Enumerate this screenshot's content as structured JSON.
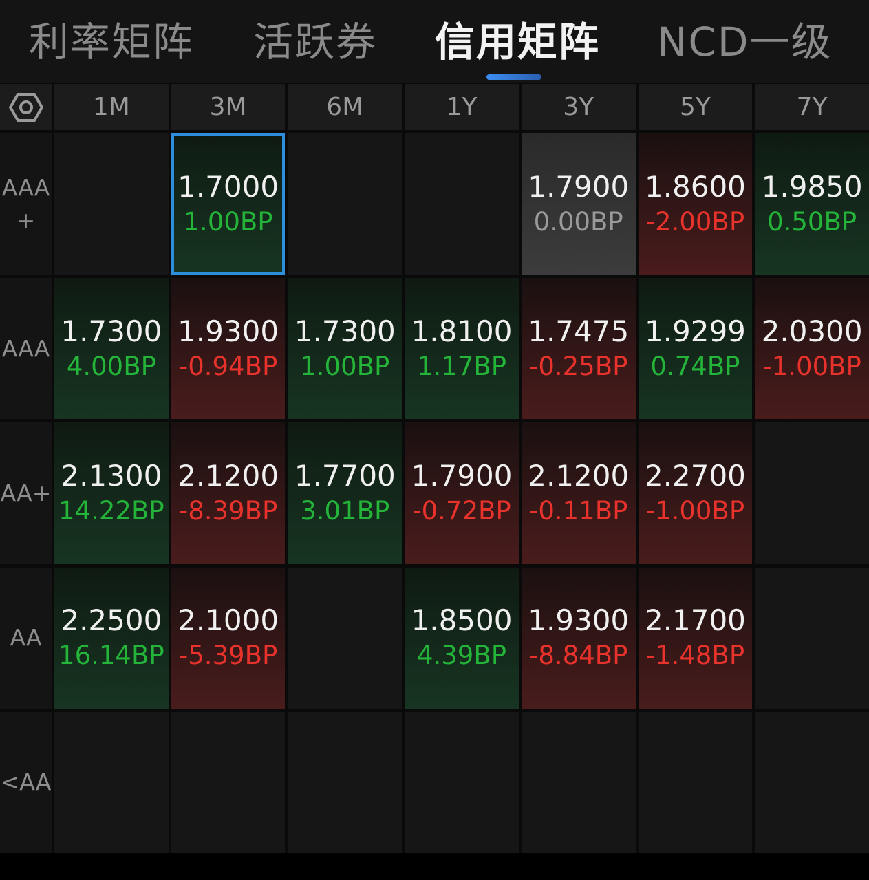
{
  "tabs": [
    {
      "label": "利率矩阵",
      "active": false
    },
    {
      "label": "活跃券",
      "active": false
    },
    {
      "label": "信用矩阵",
      "active": true
    },
    {
      "label": "NCD一级",
      "active": false
    }
  ],
  "columns": [
    "1M",
    "3M",
    "6M",
    "1Y",
    "3Y",
    "5Y",
    "7Y"
  ],
  "rows": [
    {
      "label": "AAA\n+",
      "cells": [
        null,
        {
          "rate": "1.7000",
          "change": "1.00BP",
          "trend": "up",
          "selected": true
        },
        null,
        null,
        {
          "rate": "1.7900",
          "change": "0.00BP",
          "trend": "flat"
        },
        {
          "rate": "1.8600",
          "change": "-2.00BP",
          "trend": "down"
        },
        {
          "rate": "1.9850",
          "change": "0.50BP",
          "trend": "up"
        }
      ]
    },
    {
      "label": "AAA",
      "cells": [
        {
          "rate": "1.7300",
          "change": "4.00BP",
          "trend": "up"
        },
        {
          "rate": "1.9300",
          "change": "-0.94BP",
          "trend": "down"
        },
        {
          "rate": "1.7300",
          "change": "1.00BP",
          "trend": "up"
        },
        {
          "rate": "1.8100",
          "change": "1.17BP",
          "trend": "up"
        },
        {
          "rate": "1.7475",
          "change": "-0.25BP",
          "trend": "down"
        },
        {
          "rate": "1.9299",
          "change": "0.74BP",
          "trend": "up"
        },
        {
          "rate": "2.0300",
          "change": "-1.00BP",
          "trend": "down"
        }
      ]
    },
    {
      "label": "AA+",
      "cells": [
        {
          "rate": "2.1300",
          "change": "14.22BP",
          "trend": "up"
        },
        {
          "rate": "2.1200",
          "change": "-8.39BP",
          "trend": "down"
        },
        {
          "rate": "1.7700",
          "change": "3.01BP",
          "trend": "up"
        },
        {
          "rate": "1.7900",
          "change": "-0.72BP",
          "trend": "down"
        },
        {
          "rate": "2.1200",
          "change": "-0.11BP",
          "trend": "down"
        },
        {
          "rate": "2.2700",
          "change": "-1.00BP",
          "trend": "down"
        },
        null
      ]
    },
    {
      "label": "AA",
      "cells": [
        {
          "rate": "2.2500",
          "change": "16.14BP",
          "trend": "up"
        },
        {
          "rate": "2.1000",
          "change": "-5.39BP",
          "trend": "down"
        },
        null,
        {
          "rate": "1.8500",
          "change": "4.39BP",
          "trend": "up"
        },
        {
          "rate": "1.9300",
          "change": "-8.84BP",
          "trend": "down"
        },
        {
          "rate": "2.1700",
          "change": "-1.48BP",
          "trend": "down"
        },
        null
      ]
    },
    {
      "label": "<AA",
      "cells": [
        null,
        null,
        null,
        null,
        null,
        null,
        null
      ]
    }
  ],
  "icons": {
    "settings": "hexagon-settings-icon"
  },
  "colors": {
    "up": "#25b43a",
    "down": "#e8322c",
    "flat": "#9a9a9a",
    "accent": "#2e8ede"
  }
}
